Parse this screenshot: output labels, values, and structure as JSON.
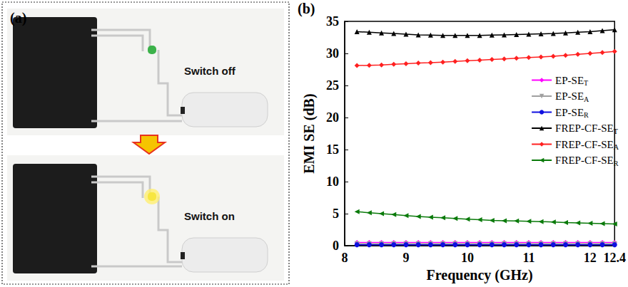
{
  "panel_a": {
    "label": "(a)",
    "photos": [
      {
        "caption": "Switch off",
        "led": "off"
      },
      {
        "caption": "Switch on",
        "led": "on"
      }
    ]
  },
  "chart_data": {
    "type": "line",
    "panel": "(b)",
    "x_label": "Frequency (GHz)",
    "y_label": "EMI SE (dB)",
    "x": [
      8.2,
      8.4,
      8.6,
      8.8,
      9.0,
      9.2,
      9.4,
      9.6,
      9.8,
      10.0,
      10.2,
      10.4,
      10.6,
      10.8,
      11.0,
      11.2,
      11.4,
      11.6,
      11.8,
      12.0,
      12.2,
      12.4
    ],
    "xlim": [
      8,
      12.4
    ],
    "xticks": [
      8,
      9,
      10,
      11,
      12
    ],
    "ylim": [
      0,
      35
    ],
    "yticks": [
      0,
      5,
      10,
      15,
      20,
      25,
      30,
      35
    ],
    "grid": false,
    "legend": "right",
    "series": [
      {
        "name": "EP-SET",
        "color": "#ff00ff",
        "marker": "diamond",
        "values": [
          0.5,
          0.5,
          0.5,
          0.5,
          0.5,
          0.5,
          0.5,
          0.5,
          0.5,
          0.5,
          0.5,
          0.5,
          0.5,
          0.5,
          0.5,
          0.5,
          0.5,
          0.5,
          0.5,
          0.5,
          0.5,
          0.5
        ]
      },
      {
        "name": "EP-SEA",
        "color": "#a0a0a0",
        "marker": "triangle-down",
        "values": [
          0.3,
          0.3,
          0.3,
          0.3,
          0.3,
          0.3,
          0.3,
          0.3,
          0.3,
          0.3,
          0.3,
          0.3,
          0.3,
          0.3,
          0.3,
          0.3,
          0.3,
          0.3,
          0.3,
          0.3,
          0.3,
          0.3
        ]
      },
      {
        "name": "EP-SER",
        "color": "#1010e0",
        "marker": "circle",
        "values": [
          0.15,
          0.15,
          0.15,
          0.15,
          0.15,
          0.15,
          0.15,
          0.15,
          0.15,
          0.15,
          0.15,
          0.15,
          0.15,
          0.15,
          0.15,
          0.15,
          0.15,
          0.15,
          0.15,
          0.15,
          0.15,
          0.15
        ]
      },
      {
        "name": "FREP-CF-SET",
        "color": "#000000",
        "marker": "triangle-up",
        "values": [
          33.4,
          33.3,
          33.2,
          33.1,
          33.0,
          32.9,
          32.85,
          32.8,
          32.8,
          32.8,
          32.8,
          32.85,
          32.9,
          32.95,
          33.0,
          33.05,
          33.1,
          33.2,
          33.3,
          33.4,
          33.55,
          33.7
        ]
      },
      {
        "name": "FREP-CF-SEA",
        "color": "#ff2020",
        "marker": "diamond",
        "values": [
          28.1,
          28.15,
          28.2,
          28.3,
          28.4,
          28.5,
          28.55,
          28.65,
          28.75,
          28.85,
          28.95,
          29.05,
          29.15,
          29.25,
          29.35,
          29.45,
          29.55,
          29.7,
          29.85,
          30.0,
          30.15,
          30.3
        ]
      },
      {
        "name": "FREP-CF-SER",
        "color": "#0a7a0a",
        "marker": "triangle-left",
        "values": [
          5.3,
          5.15,
          5.0,
          4.85,
          4.7,
          4.55,
          4.45,
          4.35,
          4.25,
          4.15,
          4.05,
          3.95,
          3.9,
          3.85,
          3.8,
          3.75,
          3.7,
          3.6,
          3.55,
          3.5,
          3.45,
          3.4
        ]
      }
    ]
  }
}
